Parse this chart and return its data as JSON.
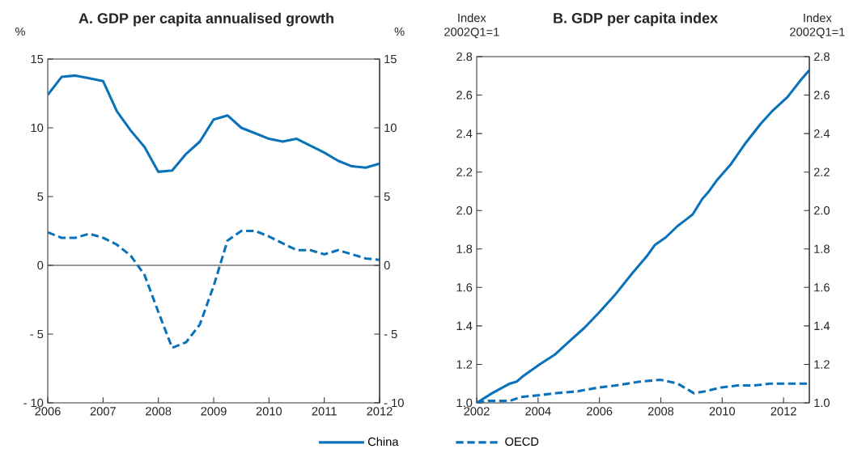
{
  "chart_data": [
    {
      "type": "line",
      "title": "A. GDP per capita annualised growth",
      "ylabel": "%",
      "y2label": "%",
      "xlim": [
        2006,
        2012
      ],
      "xticks": [
        2006,
        2007,
        2008,
        2009,
        2010,
        2011,
        2012
      ],
      "ylim": [
        -10,
        15
      ],
      "yticks": [
        {
          "value": -10,
          "label": "- 10"
        },
        {
          "value": -5,
          "label": "- 5"
        },
        0,
        5,
        10,
        15
      ],
      "y2lim": [
        -10,
        15
      ],
      "y2ticks": [
        {
          "value": -10,
          "label": "- 10"
        },
        {
          "value": -5,
          "label": "- 5"
        },
        0,
        5,
        10,
        15
      ],
      "ref_lines": [
        {
          "axis": "y",
          "value": 0,
          "color": "#333333"
        }
      ],
      "legend": "bottom",
      "series": [
        {
          "name": "China",
          "color": "#0b72b9",
          "line_style": "solid",
          "x": [
            2006.0,
            2006.25,
            2006.5,
            2006.75,
            2007.0,
            2007.25,
            2007.5,
            2007.75,
            2008.0,
            2008.25,
            2008.5,
            2008.75,
            2009.0,
            2009.25,
            2009.5,
            2009.75,
            2010.0,
            2010.25,
            2010.5,
            2010.75,
            2011.0,
            2011.25,
            2011.5,
            2011.75,
            2012.0
          ],
          "values": [
            12.4,
            13.7,
            13.8,
            13.6,
            13.4,
            11.2,
            9.8,
            8.6,
            6.8,
            6.9,
            8.1,
            9.0,
            10.6,
            10.9,
            10.0,
            9.6,
            9.2,
            9.0,
            9.2,
            8.7,
            8.2,
            7.6,
            7.2,
            7.1,
            7.4
          ]
        },
        {
          "name": "OECD",
          "color": "#0b72b9",
          "line_style": "dashed",
          "x": [
            2006.0,
            2006.25,
            2006.5,
            2006.75,
            2007.0,
            2007.25,
            2007.5,
            2007.75,
            2008.0,
            2008.25,
            2008.5,
            2008.75,
            2009.0,
            2009.25,
            2009.5,
            2009.75,
            2010.0,
            2010.25,
            2010.5,
            2010.75,
            2011.0,
            2011.25,
            2011.5,
            2011.75,
            2012.0
          ],
          "values": [
            2.4,
            2.0,
            2.0,
            2.3,
            2.0,
            1.5,
            0.7,
            -0.7,
            -3.4,
            -6.0,
            -5.6,
            -4.3,
            -1.5,
            1.8,
            2.5,
            2.5,
            2.1,
            1.6,
            1.1,
            1.1,
            0.8,
            1.1,
            0.8,
            0.5,
            0.4
          ]
        }
      ]
    },
    {
      "type": "line",
      "title": "B. GDP per capita index",
      "ylabel": "Index 2002Q1=1",
      "y2label": "Index 2002Q1=1",
      "xlim": [
        2002,
        2012.84
      ],
      "xticks": [
        2002,
        2004,
        2006,
        2008,
        2010,
        2012
      ],
      "ylim": [
        1.0,
        2.8
      ],
      "yticks": [
        {
          "value": 1.0,
          "label": "1.0"
        },
        1.2,
        1.4,
        1.6,
        1.8,
        {
          "value": 2.0,
          "label": "2.0"
        },
        2.2,
        2.4,
        2.6,
        2.8
      ],
      "y2lim": [
        1.0,
        2.8
      ],
      "y2ticks": [
        {
          "value": 1.0,
          "label": "1.0"
        },
        1.2,
        1.4,
        1.6,
        1.8,
        {
          "value": 2.0,
          "label": "2.0"
        },
        2.2,
        2.4,
        2.6,
        2.8
      ],
      "series": [
        {
          "color": "#0b72b9",
          "line_style": "solid",
          "x": [
            2002.0,
            2002.5,
            2003.08,
            2003.3,
            2003.52,
            2004.05,
            2004.54,
            2005.02,
            2005.51,
            2005.99,
            2006.5,
            2007.05,
            2007.58,
            2007.8,
            2008.16,
            2008.55,
            2008.8,
            2009.04,
            2009.35,
            2009.57,
            2009.84,
            2010.06,
            2010.28,
            2010.76,
            2011.25,
            2011.65,
            2012.13,
            2012.57,
            2012.84
          ],
          "values": [
            1.0,
            1.05,
            1.1,
            1.11,
            1.14,
            1.2,
            1.25,
            1.32,
            1.39,
            1.47,
            1.56,
            1.67,
            1.77,
            1.82,
            1.86,
            1.92,
            1.95,
            1.98,
            2.06,
            2.1,
            2.16,
            2.2,
            2.24,
            2.35,
            2.45,
            2.52,
            2.59,
            2.68,
            2.73
          ]
        },
        {
          "color": "#0b72b9",
          "line_style": "dashed",
          "x": [
            2002.0,
            2002.37,
            2003.08,
            2003.43,
            2004.05,
            2004.58,
            2005.29,
            2005.99,
            2006.52,
            2007.32,
            2007.98,
            2008.55,
            2009.08,
            2009.44,
            2009.97,
            2010.5,
            2011.03,
            2011.56,
            2012.0,
            2012.35,
            2012.84
          ],
          "values": [
            1.0,
            1.01,
            1.01,
            1.03,
            1.04,
            1.05,
            1.06,
            1.08,
            1.09,
            1.11,
            1.12,
            1.1,
            1.05,
            1.06,
            1.08,
            1.09,
            1.09,
            1.1,
            1.1,
            1.1,
            1.1
          ]
        }
      ]
    }
  ]
}
